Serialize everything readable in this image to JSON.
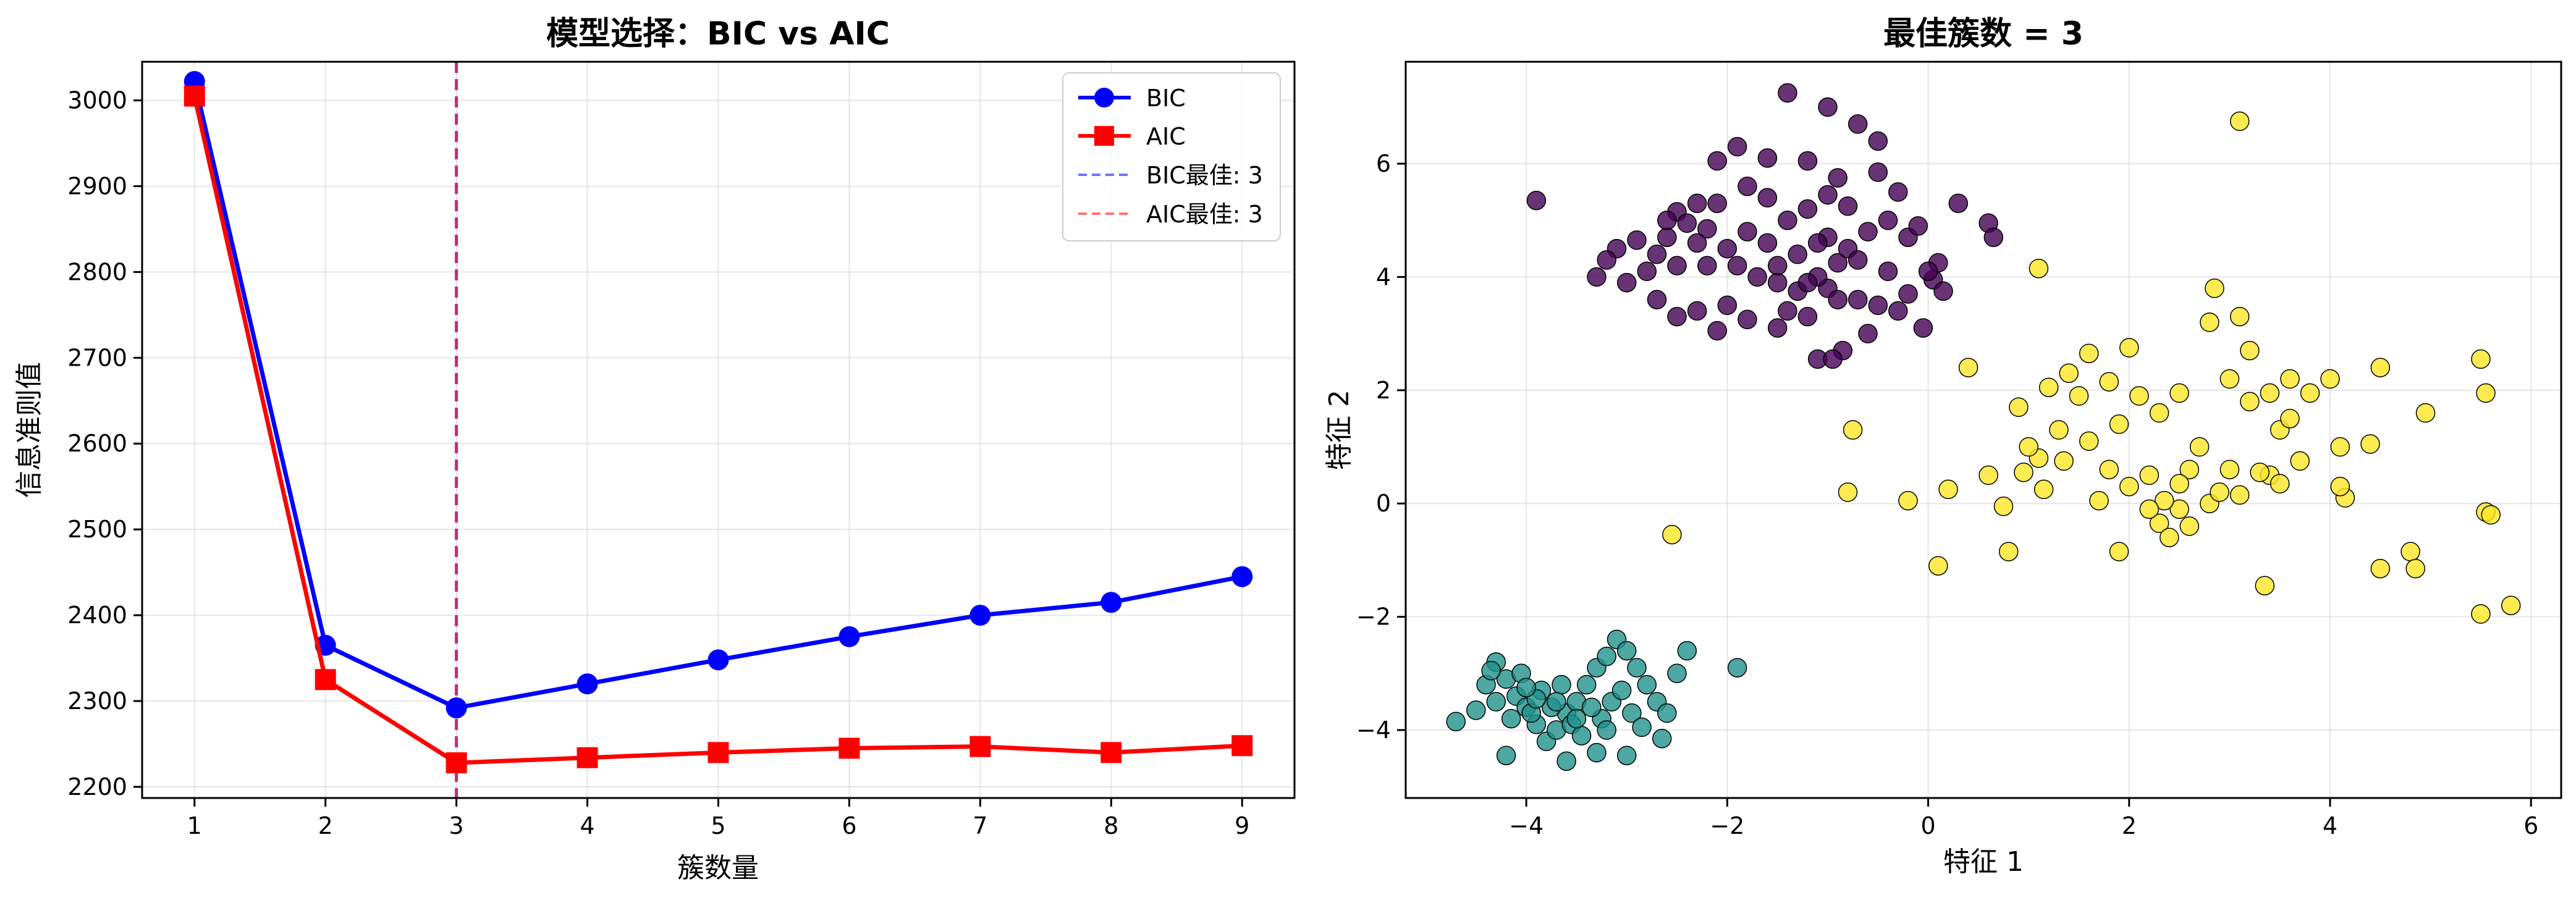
{
  "chart_data": [
    {
      "type": "line",
      "title": "模型选择：BIC vs AIC",
      "xlabel": "簇数量",
      "ylabel": "信息准则值",
      "x": [
        1,
        2,
        3,
        4,
        5,
        6,
        7,
        8,
        9
      ],
      "xlim": [
        0.6,
        9.4
      ],
      "ylim": [
        2187,
        3045
      ],
      "xticks": [
        1,
        2,
        3,
        4,
        5,
        6,
        7,
        8,
        9
      ],
      "yticks": [
        2200,
        2300,
        2400,
        2500,
        2600,
        2700,
        2800,
        2900,
        3000
      ],
      "grid": true,
      "legend_position": "top-right",
      "series": [
        {
          "name": "BIC",
          "color": "#0000ff",
          "marker": "circle",
          "values": [
            3022,
            2365,
            2292,
            2320,
            2348,
            2375,
            2400,
            2415,
            2445
          ]
        },
        {
          "name": "AIC",
          "color": "#ff0000",
          "marker": "square",
          "values": [
            3005,
            2325,
            2228,
            2234,
            2240,
            2245,
            2247,
            2240,
            2248
          ]
        }
      ],
      "vlines": [
        {
          "name": "BIC最佳: 3",
          "x": 3,
          "color": "#0000ff",
          "style": "dashed"
        },
        {
          "name": "AIC最佳: 3",
          "x": 3,
          "color": "#ff0000",
          "style": "dashed"
        }
      ]
    },
    {
      "type": "scatter",
      "title": "最佳簇数 = 3",
      "xlabel": "特征 1",
      "ylabel": "特征 2",
      "xlim": [
        -5.2,
        6.3
      ],
      "ylim": [
        -5.2,
        7.8
      ],
      "xticks": [
        -4,
        -2,
        0,
        2,
        4,
        6
      ],
      "yticks": [
        -4,
        -2,
        0,
        2,
        4,
        6
      ],
      "grid": true,
      "clusters": [
        {
          "color": "#440154",
          "points": [
            [
              -3.9,
              5.35
            ],
            [
              -3.1,
              4.5
            ],
            [
              -2.9,
              4.65
            ],
            [
              -2.7,
              4.4
            ],
            [
              -2.5,
              5.15
            ],
            [
              -2.3,
              5.3
            ],
            [
              -2.1,
              6.05
            ],
            [
              -1.9,
              6.3
            ],
            [
              -1.6,
              6.1
            ],
            [
              -1.4,
              7.25
            ],
            [
              -1.0,
              7.0
            ],
            [
              -0.7,
              6.7
            ],
            [
              -0.5,
              6.4
            ],
            [
              -1.2,
              6.05
            ],
            [
              -0.9,
              5.75
            ],
            [
              -0.5,
              5.85
            ],
            [
              -0.3,
              5.5
            ],
            [
              0.3,
              5.3
            ],
            [
              0.6,
              4.95
            ],
            [
              0.65,
              4.7
            ],
            [
              0.1,
              4.25
            ],
            [
              0.05,
              3.95
            ],
            [
              0.15,
              3.75
            ],
            [
              -0.05,
              3.1
            ],
            [
              -0.2,
              3.7
            ],
            [
              -0.5,
              3.5
            ],
            [
              -0.7,
              3.6
            ],
            [
              -1.0,
              3.8
            ],
            [
              -1.2,
              3.3
            ],
            [
              -1.5,
              3.1
            ],
            [
              -1.8,
              3.25
            ],
            [
              -2.1,
              3.05
            ],
            [
              -2.3,
              3.4
            ],
            [
              -2.5,
              3.3
            ],
            [
              -2.7,
              3.6
            ],
            [
              -3.0,
              3.9
            ],
            [
              -3.3,
              4.0
            ],
            [
              -2.6,
              4.7
            ],
            [
              -2.4,
              4.95
            ],
            [
              -2.2,
              4.85
            ],
            [
              -2.0,
              4.5
            ],
            [
              -1.9,
              4.2
            ],
            [
              -1.7,
              4.0
            ],
            [
              -1.5,
              3.9
            ],
            [
              -1.3,
              3.75
            ],
            [
              -1.1,
              4.0
            ],
            [
              -0.9,
              4.25
            ],
            [
              -0.8,
              4.5
            ],
            [
              -0.6,
              4.8
            ],
            [
              -0.4,
              5.0
            ],
            [
              -0.2,
              4.7
            ],
            [
              -0.1,
              4.9
            ],
            [
              -1.4,
              5.0
            ],
            [
              -1.2,
              5.2
            ],
            [
              -1.0,
              5.45
            ],
            [
              -0.8,
              5.25
            ],
            [
              -1.6,
              5.4
            ],
            [
              -1.8,
              5.6
            ],
            [
              -2.1,
              5.3
            ],
            [
              -2.3,
              4.6
            ],
            [
              -2.5,
              4.2
            ],
            [
              -2.0,
              3.5
            ],
            [
              -1.4,
              3.4
            ],
            [
              -1.1,
              2.55
            ],
            [
              -0.85,
              2.7
            ],
            [
              -0.95,
              2.55
            ],
            [
              -0.6,
              3.0
            ],
            [
              -1.3,
              4.4
            ],
            [
              -1.0,
              4.7
            ],
            [
              -0.7,
              4.3
            ],
            [
              -1.6,
              4.6
            ],
            [
              -1.8,
              4.8
            ],
            [
              -2.2,
              4.2
            ],
            [
              -0.4,
              4.1
            ],
            [
              -1.2,
              3.9
            ],
            [
              -0.9,
              3.6
            ],
            [
              -1.5,
              4.2
            ],
            [
              -1.1,
              4.6
            ],
            [
              -2.8,
              4.1
            ],
            [
              -3.2,
              4.3
            ],
            [
              -0.3,
              3.4
            ],
            [
              0.0,
              4.1
            ],
            [
              -2.6,
              5.0
            ]
          ]
        },
        {
          "color": "#21918c",
          "points": [
            [
              -4.7,
              -3.85
            ],
            [
              -4.5,
              -3.65
            ],
            [
              -4.4,
              -3.2
            ],
            [
              -4.3,
              -2.8
            ],
            [
              -4.2,
              -3.1
            ],
            [
              -4.1,
              -3.4
            ],
            [
              -4.0,
              -3.6
            ],
            [
              -3.9,
              -3.9
            ],
            [
              -3.8,
              -4.2
            ],
            [
              -3.7,
              -4.0
            ],
            [
              -3.6,
              -3.7
            ],
            [
              -3.5,
              -3.5
            ],
            [
              -3.4,
              -3.2
            ],
            [
              -3.3,
              -2.9
            ],
            [
              -3.2,
              -2.7
            ],
            [
              -3.1,
              -2.4
            ],
            [
              -3.0,
              -2.6
            ],
            [
              -2.9,
              -2.9
            ],
            [
              -2.8,
              -3.2
            ],
            [
              -2.7,
              -3.5
            ],
            [
              -2.6,
              -3.7
            ],
            [
              -2.5,
              -3.0
            ],
            [
              -2.4,
              -2.6
            ],
            [
              -1.9,
              -2.9
            ],
            [
              -4.2,
              -4.45
            ],
            [
              -3.6,
              -4.55
            ],
            [
              -3.3,
              -4.4
            ],
            [
              -3.0,
              -4.45
            ],
            [
              -2.65,
              -4.15
            ],
            [
              -4.3,
              -3.5
            ],
            [
              -4.05,
              -3.0
            ],
            [
              -3.85,
              -3.3
            ],
            [
              -3.75,
              -3.6
            ],
            [
              -3.55,
              -3.9
            ],
            [
              -3.45,
              -4.1
            ],
            [
              -3.25,
              -3.8
            ],
            [
              -3.15,
              -3.5
            ],
            [
              -3.05,
              -3.3
            ],
            [
              -2.95,
              -3.7
            ],
            [
              -2.85,
              -3.95
            ],
            [
              -3.65,
              -3.2
            ],
            [
              -3.95,
              -3.7
            ],
            [
              -4.15,
              -3.8
            ],
            [
              -4.35,
              -2.95
            ],
            [
              -3.35,
              -3.6
            ],
            [
              -3.2,
              -4.0
            ],
            [
              -3.9,
              -3.45
            ],
            [
              -4.0,
              -3.25
            ],
            [
              -3.5,
              -3.8
            ],
            [
              -3.7,
              -3.5
            ]
          ]
        },
        {
          "color": "#fde725",
          "points": [
            [
              3.1,
              6.75
            ],
            [
              1.1,
              4.15
            ],
            [
              0.4,
              2.4
            ],
            [
              0.9,
              1.7
            ],
            [
              1.2,
              2.05
            ],
            [
              1.4,
              2.3
            ],
            [
              1.6,
              2.65
            ],
            [
              1.8,
              2.15
            ],
            [
              2.0,
              2.75
            ],
            [
              2.1,
              1.9
            ],
            [
              2.3,
              1.6
            ],
            [
              2.5,
              1.95
            ],
            [
              2.8,
              3.2
            ],
            [
              2.85,
              3.8
            ],
            [
              3.1,
              3.3
            ],
            [
              3.2,
              2.7
            ],
            [
              3.0,
              2.2
            ],
            [
              3.4,
              1.95
            ],
            [
              3.6,
              2.2
            ],
            [
              3.8,
              1.95
            ],
            [
              4.0,
              2.2
            ],
            [
              4.5,
              2.4
            ],
            [
              5.5,
              2.55
            ],
            [
              5.55,
              1.95
            ],
            [
              4.95,
              1.6
            ],
            [
              4.4,
              1.05
            ],
            [
              4.1,
              1.0
            ],
            [
              3.7,
              0.75
            ],
            [
              3.4,
              0.5
            ],
            [
              3.1,
              0.15
            ],
            [
              2.8,
              0.0
            ],
            [
              2.5,
              -0.1
            ],
            [
              2.3,
              -0.35
            ],
            [
              2.0,
              0.3
            ],
            [
              1.8,
              0.6
            ],
            [
              1.6,
              1.1
            ],
            [
              1.3,
              1.3
            ],
            [
              1.1,
              0.8
            ],
            [
              0.95,
              0.55
            ],
            [
              0.6,
              0.5
            ],
            [
              0.2,
              0.25
            ],
            [
              0.1,
              -1.1
            ],
            [
              0.8,
              -0.85
            ],
            [
              1.9,
              -0.85
            ],
            [
              2.4,
              -0.6
            ],
            [
              3.35,
              -1.45
            ],
            [
              4.5,
              -1.15
            ],
            [
              4.8,
              -0.85
            ],
            [
              4.85,
              -1.15
            ],
            [
              5.5,
              -1.95
            ],
            [
              5.55,
              -0.15
            ],
            [
              5.6,
              -0.2
            ],
            [
              5.8,
              -1.8
            ],
            [
              4.15,
              0.1
            ],
            [
              4.1,
              0.3
            ],
            [
              3.5,
              0.35
            ],
            [
              3.0,
              0.6
            ],
            [
              2.7,
              1.0
            ],
            [
              2.6,
              0.6
            ],
            [
              2.2,
              0.5
            ],
            [
              1.9,
              1.4
            ],
            [
              1.5,
              1.9
            ],
            [
              1.0,
              1.0
            ],
            [
              0.75,
              -0.05
            ],
            [
              -0.8,
              0.2
            ],
            [
              -0.75,
              1.3
            ],
            [
              -2.55,
              -0.55
            ],
            [
              -0.2,
              0.05
            ],
            [
              2.35,
              0.05
            ],
            [
              2.5,
              0.35
            ],
            [
              2.9,
              0.2
            ],
            [
              3.3,
              0.55
            ],
            [
              3.5,
              1.3
            ],
            [
              2.2,
              -0.1
            ],
            [
              1.7,
              0.05
            ],
            [
              1.35,
              0.75
            ],
            [
              1.15,
              0.25
            ],
            [
              2.6,
              -0.4
            ],
            [
              3.2,
              1.8
            ],
            [
              3.6,
              1.5
            ]
          ]
        }
      ]
    }
  ]
}
